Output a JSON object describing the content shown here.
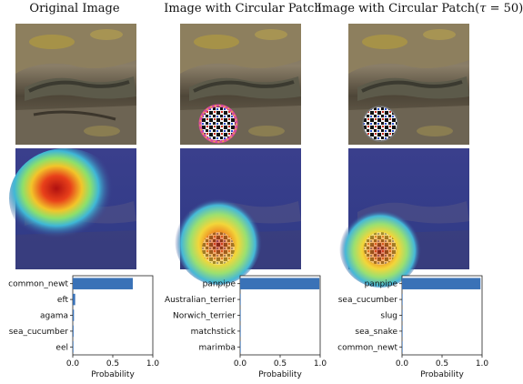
{
  "figure": {
    "columns": [
      {
        "title": "Original Image",
        "title_suffix": "",
        "has_patch": false,
        "heat_center": "top-left"
      },
      {
        "title": "Image with Circular Patch",
        "title_suffix": "",
        "has_patch": true,
        "heat_center": "patch"
      },
      {
        "title": "Image with Circular Patch(",
        "title_suffix": " = 50)",
        "tau_symbol": "τ",
        "has_patch": true,
        "heat_center": "patch"
      }
    ]
  },
  "colors": {
    "bar": "#3a72b7",
    "axis": "#222222"
  },
  "chart_data": [
    {
      "type": "bar",
      "orientation": "horizontal",
      "categories": [
        "common_newt",
        "eft",
        "agama",
        "sea_cucumber",
        "eel"
      ],
      "values": [
        0.75,
        0.03,
        0.015,
        0.01,
        0.008
      ],
      "xlabel": "Probability",
      "xlim": [
        0,
        1
      ],
      "xticks": [
        "0.0",
        "0.5",
        "1.0"
      ],
      "title": ""
    },
    {
      "type": "bar",
      "orientation": "horizontal",
      "categories": [
        "panpipe",
        "Australian_terrier",
        "Norwich_terrier",
        "matchstick",
        "marimba"
      ],
      "values": [
        0.99,
        0.002,
        0.001,
        0.001,
        0.001
      ],
      "xlabel": "Probability",
      "xlim": [
        0,
        1
      ],
      "xticks": [
        "0.0",
        "0.5",
        "1.0"
      ],
      "title": ""
    },
    {
      "type": "bar",
      "orientation": "horizontal",
      "categories": [
        "panpipe",
        "sea_cucumber",
        "slug",
        "sea_snake",
        "common_newt"
      ],
      "values": [
        0.98,
        0.004,
        0.002,
        0.001,
        0.001
      ],
      "xlabel": "Probability",
      "xlim": [
        0,
        1
      ],
      "xticks": [
        "0.0",
        "0.5",
        "1.0"
      ],
      "title": ""
    }
  ]
}
